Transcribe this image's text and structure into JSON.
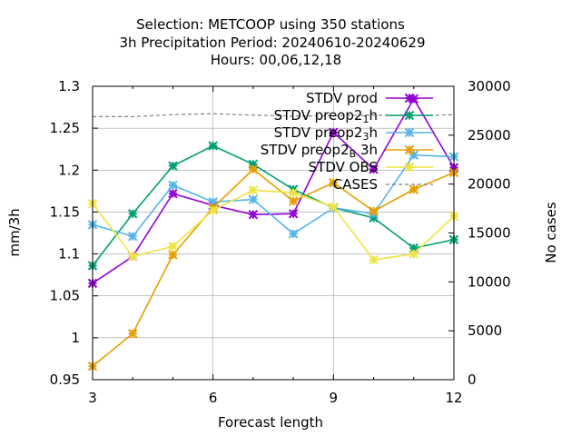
{
  "chart_data": {
    "type": "line",
    "title_lines": [
      "Selection: METCOOP using   350 stations",
      "3h Precipitation   Period: 20240610-20240629",
      "Hours:  00,06,12,18"
    ],
    "xlabel": "Forecast length",
    "ylabel": "mm/3h",
    "y2label": "No cases",
    "xlim": [
      3,
      12
    ],
    "ylim": [
      0.95,
      1.3
    ],
    "y2lim": [
      0,
      30000
    ],
    "x_ticks": [
      "3",
      "6",
      "9",
      "12"
    ],
    "y_ticks": [
      "0.95",
      "1",
      "1.05",
      "1.1",
      "1.15",
      "1.2",
      "1.25",
      "1.3"
    ],
    "y2_ticks": [
      "0",
      "5000",
      "10000",
      "15000",
      "20000",
      "25000",
      "30000"
    ],
    "grid": true,
    "legend_position": "top-right",
    "x": [
      3,
      4,
      5,
      6,
      7,
      8,
      9,
      10,
      11,
      12
    ],
    "series": [
      {
        "name": "STDV prod",
        "label_parts": [
          [
            "STDV prod",
            ""
          ]
        ],
        "color": "#9400d3",
        "axis": "y",
        "values": [
          1.065,
          1.097,
          1.172,
          1.158,
          1.147,
          1.148,
          1.245,
          1.201,
          1.285,
          1.203
        ]
      },
      {
        "name": "STDV preop2_1h",
        "label_parts": [
          [
            "STDV preop2",
            ""
          ],
          [
            "1",
            "sub"
          ],
          [
            "h",
            ""
          ]
        ],
        "color": "#009e73",
        "axis": "y",
        "values": [
          1.086,
          1.148,
          1.205,
          1.229,
          1.207,
          1.177,
          1.155,
          1.143,
          1.107,
          1.117
        ]
      },
      {
        "name": "STDV preop2_3h",
        "label_parts": [
          [
            "STDV preop2",
            ""
          ],
          [
            "3",
            "sub"
          ],
          [
            "h",
            ""
          ]
        ],
        "color": "#56b4e9",
        "axis": "y",
        "values": [
          1.135,
          1.121,
          1.182,
          1.162,
          1.165,
          1.124,
          1.155,
          1.148,
          1.218,
          1.216
        ]
      },
      {
        "name": "STDV preop2_B 3h",
        "label_parts": [
          [
            "STDV preop2",
            ""
          ],
          [
            "B",
            "sub"
          ],
          [
            " 3h",
            ""
          ]
        ],
        "color": "#e69f00",
        "axis": "y",
        "values": [
          0.966,
          1.005,
          1.099,
          1.155,
          1.201,
          1.163,
          1.185,
          1.151,
          1.177,
          1.197
        ]
      },
      {
        "name": "STDV OBS",
        "label_parts": [
          [
            "STDV OBS",
            ""
          ]
        ],
        "color": "#f0e442",
        "axis": "y",
        "values": [
          1.16,
          1.097,
          1.109,
          1.152,
          1.176,
          1.173,
          1.156,
          1.093,
          1.1,
          1.145
        ]
      },
      {
        "name": "CASES",
        "label_parts": [
          [
            "CASES",
            ""
          ]
        ],
        "color": "#808080",
        "axis": "y2",
        "dashed": true,
        "values": [
          26900,
          26900,
          27100,
          27200,
          27050,
          26950,
          27000,
          27050,
          27000,
          27100
        ]
      }
    ]
  }
}
